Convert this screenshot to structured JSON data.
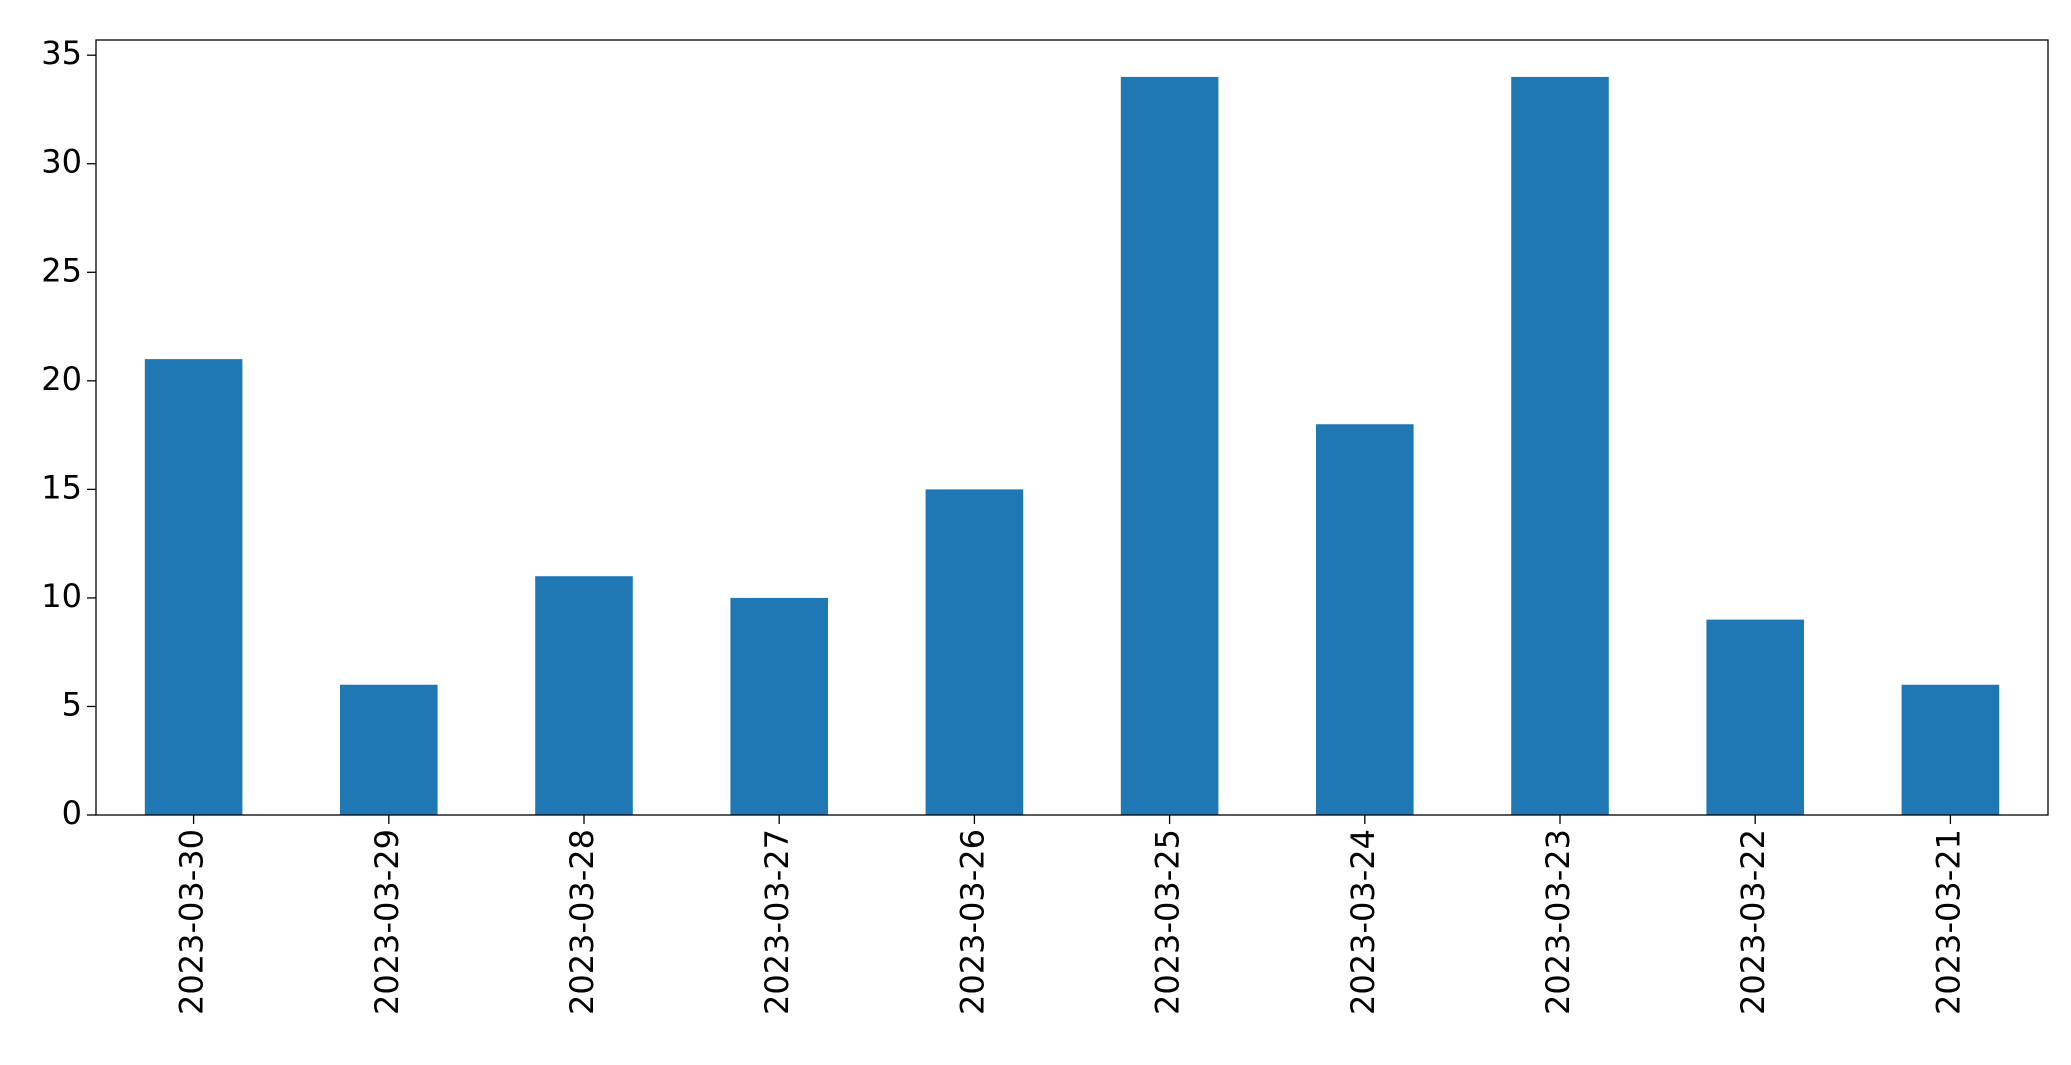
{
  "chart_data": {
    "type": "bar",
    "categories": [
      "2023-03-30",
      "2023-03-29",
      "2023-03-28",
      "2023-03-27",
      "2023-03-26",
      "2023-03-25",
      "2023-03-24",
      "2023-03-23",
      "2023-03-22",
      "2023-03-21"
    ],
    "values": [
      21,
      6,
      11,
      10,
      15,
      34,
      18,
      34,
      9,
      6
    ],
    "color": "#1f77b4",
    "ylim": [
      0,
      35.7
    ],
    "yticks": [
      0,
      5,
      10,
      15,
      20,
      25,
      30,
      35
    ],
    "grid": false
  }
}
